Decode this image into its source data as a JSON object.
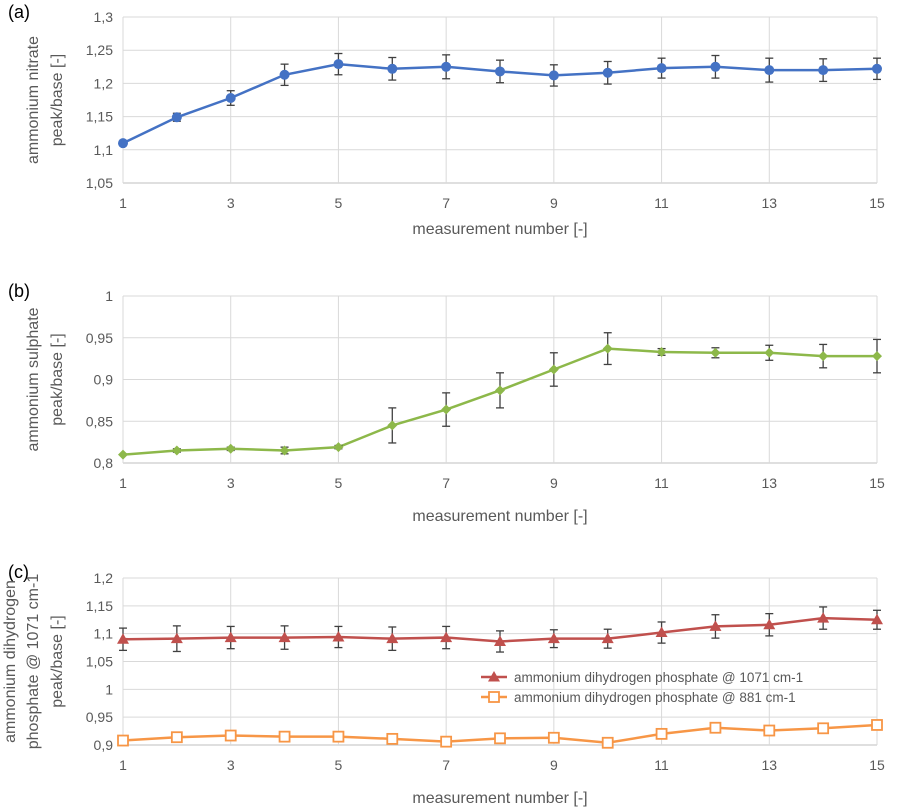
{
  "chart_data": [
    {
      "type": "line",
      "panel_label": "(a)",
      "xlabel": "measurement number [-]",
      "ylabel": [
        "ammonium nitrate",
        "peak/base [-]"
      ],
      "xlim": [
        1,
        15
      ],
      "ylim": [
        1.05,
        1.3
      ],
      "x_ticks": [
        "1",
        "3",
        "5",
        "7",
        "9",
        "11",
        "13",
        "15"
      ],
      "y_ticks": [
        "1,05",
        "1,1",
        "1,15",
        "1,2",
        "1,25",
        "1,3"
      ],
      "grid": true,
      "series": [
        {
          "marker": "circle",
          "color": "#4472C4",
          "x": [
            1,
            2,
            3,
            4,
            5,
            6,
            7,
            8,
            9,
            10,
            11,
            12,
            13,
            14,
            15
          ],
          "values": [
            1.11,
            1.149,
            1.178,
            1.213,
            1.229,
            1.222,
            1.225,
            1.218,
            1.212,
            1.216,
            1.223,
            1.225,
            1.22,
            1.22,
            1.222
          ],
          "error": [
            0.0,
            0.006,
            0.011,
            0.016,
            0.016,
            0.017,
            0.018,
            0.017,
            0.016,
            0.017,
            0.015,
            0.017,
            0.018,
            0.017,
            0.016
          ]
        }
      ]
    },
    {
      "type": "line",
      "panel_label": "(b)",
      "xlabel": "measurement number [-]",
      "ylabel": [
        "ammonium sulphate",
        "peak/base [-]"
      ],
      "xlim": [
        1,
        15
      ],
      "ylim": [
        0.8,
        1.0
      ],
      "x_ticks": [
        "1",
        "3",
        "5",
        "7",
        "9",
        "11",
        "13",
        "15"
      ],
      "y_ticks": [
        "0,8",
        "0,85",
        "0,9",
        "0,95",
        "1"
      ],
      "grid": true,
      "series": [
        {
          "marker": "diamond",
          "color": "#8DB84A",
          "x": [
            1,
            2,
            3,
            4,
            5,
            6,
            7,
            8,
            9,
            10,
            11,
            12,
            13,
            14,
            15
          ],
          "values": [
            0.81,
            0.815,
            0.817,
            0.815,
            0.819,
            0.845,
            0.864,
            0.887,
            0.912,
            0.937,
            0.933,
            0.932,
            0.932,
            0.928,
            0.928
          ],
          "error": [
            0.0,
            0.002,
            0.002,
            0.004,
            0.002,
            0.021,
            0.02,
            0.021,
            0.02,
            0.019,
            0.004,
            0.006,
            0.009,
            0.014,
            0.02
          ]
        }
      ]
    },
    {
      "type": "line",
      "panel_label": "(c)",
      "xlabel": "measurement number [-]",
      "ylabel": [
        "ammonium dihydrogen",
        "phosphate @ 1071 cm-1",
        "peak/base [-]"
      ],
      "xlim": [
        1,
        15
      ],
      "ylim": [
        0.9,
        1.2
      ],
      "x_ticks": [
        "1",
        "3",
        "5",
        "7",
        "9",
        "11",
        "13",
        "15"
      ],
      "y_ticks": [
        "0,9",
        "0,95",
        "1",
        "1,05",
        "1,1",
        "1,15",
        "1,2"
      ],
      "grid": true,
      "legend_position": "right",
      "series": [
        {
          "name": "ammonium dihydrogen phosphate @ 1071 cm-1",
          "marker": "triangle",
          "color": "#C0504D",
          "x": [
            1,
            2,
            3,
            4,
            5,
            6,
            7,
            8,
            9,
            10,
            11,
            12,
            13,
            14,
            15
          ],
          "values": [
            1.09,
            1.091,
            1.093,
            1.093,
            1.094,
            1.091,
            1.093,
            1.086,
            1.091,
            1.091,
            1.102,
            1.113,
            1.116,
            1.128,
            1.125
          ],
          "error": [
            0.02,
            0.023,
            0.02,
            0.021,
            0.019,
            0.021,
            0.02,
            0.019,
            0.016,
            0.017,
            0.019,
            0.021,
            0.02,
            0.02,
            0.017
          ]
        },
        {
          "name": "ammonium dihydrogen phosphate @ 881 cm-1",
          "marker": "square-open",
          "color": "#F79646",
          "x": [
            1,
            2,
            3,
            4,
            5,
            6,
            7,
            8,
            9,
            10,
            11,
            12,
            13,
            14,
            15
          ],
          "values": [
            0.908,
            0.914,
            0.917,
            0.915,
            0.915,
            0.911,
            0.906,
            0.912,
            0.913,
            0.904,
            0.92,
            0.931,
            0.926,
            0.93,
            0.936
          ],
          "error": [
            0.005,
            0.007,
            0.006,
            0.006,
            0.006,
            0.006,
            0.005,
            0.006,
            0.006,
            0.003,
            0.007,
            0.006,
            0.006,
            0.006,
            0.005
          ]
        }
      ]
    }
  ]
}
